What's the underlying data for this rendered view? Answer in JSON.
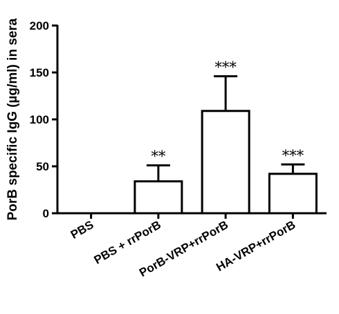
{
  "chart_data": {
    "type": "bar",
    "ylabel": "PorB specific IgG (µg/ml) in sera",
    "xlabel": "",
    "ylim": [
      0,
      200
    ],
    "yticks": [
      "0",
      "50",
      "100",
      "150",
      "200"
    ],
    "categories": [
      "PBS",
      "PBS + rrPorB",
      "PorB-VRP+rrPorB",
      "HA-VRP+rrPorB"
    ],
    "values": [
      0,
      34,
      109,
      42
    ],
    "error_upper": [
      0,
      51,
      146,
      52
    ],
    "significance": [
      "",
      "**",
      "***",
      "***"
    ],
    "bar_fill": "#ffffff",
    "bar_stroke": "#000000",
    "grid": false
  }
}
